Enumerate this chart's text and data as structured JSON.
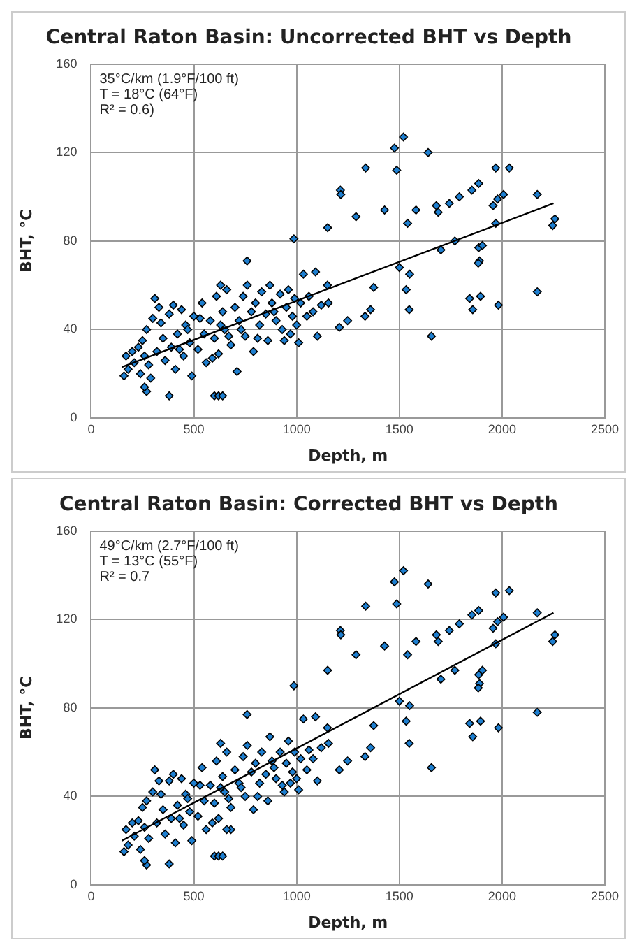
{
  "chart_data": [
    {
      "type": "scatter",
      "title": "Central Raton Basin: Uncorrected BHT vs Depth",
      "xlabel": "Depth, m",
      "ylabel": "BHT, °C",
      "xlim": [
        0,
        2500
      ],
      "xticks": [
        0,
        500,
        1000,
        1500,
        2000,
        2500
      ],
      "ylim": [
        0,
        160
      ],
      "yticks": [
        0,
        40,
        80,
        120,
        160
      ],
      "grid": true,
      "legend": false,
      "marker": "diamond",
      "annotations": [
        "35°C/km (1.9°F/100 ft)",
        "T = 18°C (64°F)",
        "R² = 0.6)"
      ],
      "series": [
        {
          "type": "scatter",
          "color": "#1e7fd0",
          "x": [
            160,
            170,
            180,
            200,
            210,
            230,
            240,
            250,
            260,
            270,
            280,
            300,
            310,
            320,
            330,
            350,
            360,
            380,
            390,
            400,
            410,
            420,
            440,
            450,
            460,
            480,
            490,
            500,
            520,
            540,
            550,
            560,
            580,
            600,
            610,
            620,
            640,
            650,
            660,
            680,
            700,
            710,
            720,
            740,
            750,
            760,
            780,
            790,
            800,
            820,
            830,
            850,
            860,
            870,
            880,
            900,
            920,
            930,
            950,
            960,
            980,
            990,
            1000,
            1010,
            1020,
            1050,
            1060,
            1080,
            1120,
            1150,
            1155,
            340,
            430,
            470,
            530,
            590,
            630,
            670,
            730,
            810,
            890,
            940,
            970,
            600,
            620,
            640,
            380,
            270,
            260,
            630,
            290,
            1520,
            1476,
            1487,
            1640,
            1336,
            1213,
            1215,
            1289,
            1151,
            987,
            1428,
            1540,
            1581,
            1680,
            1689,
            1743,
            1792,
            1853,
            1886,
            1969,
            2035,
            1956,
            1978,
            2007,
            1969,
            2171,
            2246,
            2257,
            1770,
            1702,
            1886,
            1904,
            1890,
            1884,
            1500,
            1550,
            1533,
            1548,
            1375,
            1360,
            1333,
            1248,
            1208,
            1656,
            1842,
            1857,
            1895,
            1982,
            2171,
            1101,
            1033,
            1092,
            759
          ],
          "values": [
            19,
            28,
            22,
            30,
            25,
            32,
            20,
            35,
            28,
            40,
            24,
            45,
            54,
            30,
            50,
            36,
            26,
            47,
            32,
            51,
            22,
            38,
            49,
            28,
            42,
            34,
            19,
            46,
            31,
            52,
            38,
            25,
            44,
            36,
            55,
            29,
            48,
            40,
            58,
            33,
            50,
            21,
            44,
            55,
            37,
            60,
            48,
            30,
            52,
            42,
            57,
            47,
            35,
            60,
            52,
            44,
            56,
            40,
            50,
            58,
            46,
            54,
            42,
            34,
            52,
            46,
            55,
            48,
            51,
            60,
            52,
            43,
            31,
            40,
            45,
            27,
            42,
            37,
            40,
            36,
            48,
            35,
            38,
            10,
            10,
            10,
            10,
            12,
            14,
            60,
            18,
            127,
            122,
            112,
            120,
            113,
            103,
            101,
            91,
            86,
            81,
            94,
            88,
            94,
            96,
            93,
            97,
            100,
            103,
            106,
            113,
            113,
            96,
            99,
            101,
            88,
            101,
            87,
            90,
            80,
            76,
            77,
            78,
            71,
            70,
            68,
            65,
            58,
            49,
            59,
            49,
            46,
            44,
            41,
            37,
            54,
            49,
            55,
            51,
            57,
            37,
            65,
            66,
            71
          ]
        },
        {
          "type": "line",
          "color": "#000000",
          "marker": "none",
          "x": [
            150,
            2250
          ],
          "values": [
            23,
            97
          ]
        }
      ]
    },
    {
      "type": "scatter",
      "title": "Central Raton Basin: Corrected BHT vs Depth",
      "xlabel": "Depth, m",
      "ylabel": "BHT, °C",
      "xlim": [
        0,
        2500
      ],
      "xticks": [
        0,
        500,
        1000,
        1500,
        2000,
        2500
      ],
      "ylim": [
        0,
        160
      ],
      "yticks": [
        0,
        40,
        80,
        120,
        160
      ],
      "grid": true,
      "legend": false,
      "marker": "diamond",
      "annotations": [
        "49°C/km (2.7°F/100 ft)",
        "T = 13°C (55°F)",
        "R² = 0.7"
      ],
      "series": [
        {
          "type": "scatter",
          "color": "#1e7fd0",
          "x": [
            160,
            170,
            180,
            200,
            210,
            230,
            240,
            250,
            260,
            270,
            280,
            300,
            310,
            320,
            330,
            350,
            360,
            380,
            390,
            400,
            410,
            420,
            440,
            450,
            460,
            480,
            490,
            500,
            520,
            540,
            550,
            560,
            580,
            600,
            610,
            620,
            640,
            650,
            660,
            680,
            700,
            720,
            740,
            750,
            760,
            780,
            790,
            800,
            820,
            830,
            850,
            860,
            870,
            880,
            900,
            920,
            930,
            950,
            960,
            980,
            990,
            1000,
            1010,
            1020,
            1050,
            1060,
            1080,
            1120,
            1150,
            1155,
            340,
            430,
            470,
            530,
            590,
            630,
            670,
            730,
            810,
            890,
            940,
            970,
            600,
            620,
            640,
            380,
            270,
            260,
            630,
            680,
            660,
            1520,
            1476,
            1487,
            1640,
            1336,
            1213,
            1215,
            1289,
            1151,
            987,
            1428,
            1540,
            1581,
            1680,
            1689,
            1743,
            1792,
            1853,
            1886,
            1969,
            2035,
            1956,
            1978,
            2007,
            1969,
            2171,
            2246,
            2257,
            1770,
            1702,
            1886,
            1904,
            1890,
            1884,
            1500,
            1550,
            1533,
            1548,
            1375,
            1360,
            1333,
            1248,
            1208,
            1656,
            1842,
            1857,
            1895,
            1982,
            2171,
            1101,
            1033,
            1092,
            759
          ],
          "values": [
            15,
            25,
            18,
            28,
            22,
            29,
            16,
            35,
            26,
            38,
            21,
            42,
            52,
            28,
            47,
            34,
            23,
            47,
            30,
            50,
            19,
            36,
            48,
            27,
            41,
            33,
            20,
            46,
            31,
            53,
            38,
            25,
            45,
            37,
            56,
            30,
            49,
            42,
            60,
            35,
            52,
            46,
            58,
            40,
            63,
            51,
            34,
            55,
            46,
            60,
            50,
            38,
            67,
            56,
            48,
            60,
            45,
            55,
            65,
            51,
            60,
            48,
            43,
            57,
            52,
            61,
            57,
            62,
            71,
            64,
            41,
            30,
            39,
            45,
            28,
            44,
            39,
            44,
            40,
            53,
            42,
            46,
            13,
            13,
            13,
            9.5,
            9,
            11,
            64,
            25,
            25,
            142,
            137,
            127,
            136,
            126,
            115,
            113,
            104,
            97,
            90,
            108,
            104,
            110,
            113,
            110,
            115,
            118,
            122,
            124,
            132,
            133,
            116,
            119,
            121,
            109,
            123,
            110,
            113,
            97,
            93,
            95,
            97,
            91,
            89,
            83,
            81,
            74,
            64,
            72,
            62,
            58,
            56,
            52,
            53,
            73,
            67,
            74,
            71,
            78,
            47,
            75,
            76,
            77
          ]
        },
        {
          "type": "line",
          "color": "#000000",
          "marker": "none",
          "x": [
            150,
            2250
          ],
          "values": [
            20,
            123
          ]
        }
      ]
    }
  ]
}
